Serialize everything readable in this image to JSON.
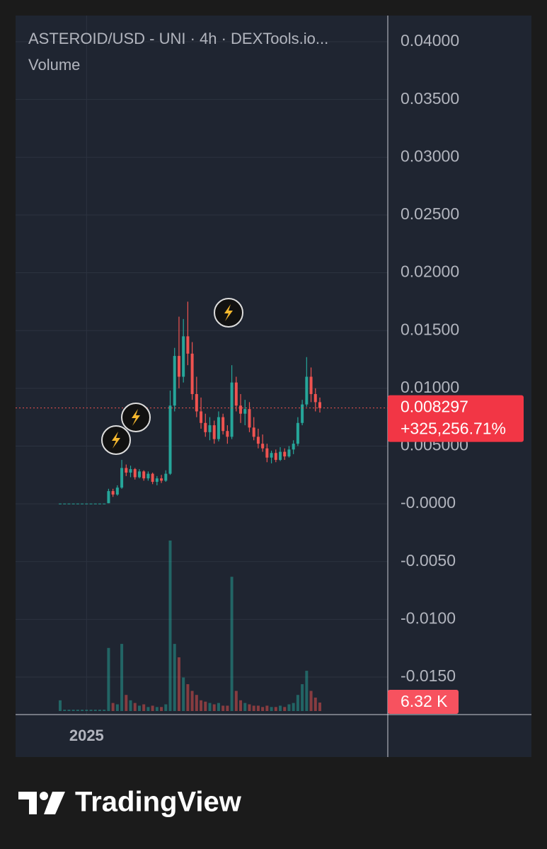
{
  "chart_data": {
    "type": "candlestick",
    "title": "ASTEROID/USD - UNI · 4h · DEXTools.io...",
    "subtitle": "Volume",
    "categories": [
      null,
      null,
      null,
      null,
      null,
      null,
      "2025",
      null,
      null,
      null,
      null,
      null,
      null,
      null,
      null,
      null,
      null,
      null,
      null,
      null,
      null,
      null,
      null,
      null,
      null,
      null,
      null,
      null,
      null,
      null,
      null,
      null,
      null,
      null,
      null,
      null,
      null,
      null,
      null,
      null,
      null,
      null,
      null,
      null,
      null,
      null,
      null,
      null,
      null,
      null,
      null,
      null,
      null,
      null,
      null,
      null,
      null,
      null,
      null,
      null
    ],
    "open": [
      2e-05,
      2e-05,
      2e-05,
      2e-05,
      2e-05,
      2e-05,
      2e-05,
      2e-05,
      2e-05,
      2e-05,
      2e-05,
      5e-05,
      0.0011,
      0.0008,
      0.0014,
      0.0031,
      0.0027,
      0.003,
      0.0023,
      0.0028,
      0.0022,
      0.0026,
      0.0019,
      0.0022,
      0.002,
      0.0026,
      0.0085,
      0.0128,
      0.011,
      0.0145,
      0.013,
      0.0095,
      0.008,
      0.007,
      0.0062,
      0.0068,
      0.0056,
      0.0075,
      0.0063,
      0.0058,
      0.0105,
      0.0085,
      0.0078,
      0.0082,
      0.0066,
      0.0058,
      0.0052,
      0.0048,
      0.004,
      0.0044,
      0.0038,
      0.0045,
      0.0041,
      0.0047,
      0.0052,
      0.007,
      0.0086,
      0.011,
      0.0095,
      0.0088
    ],
    "high": [
      2e-05,
      2e-05,
      2e-05,
      2e-05,
      2e-05,
      2e-05,
      2e-05,
      2e-05,
      2e-05,
      2e-05,
      2e-05,
      0.0013,
      0.0013,
      0.0016,
      0.0038,
      0.0034,
      0.0033,
      0.0031,
      0.003,
      0.0029,
      0.0028,
      0.0027,
      0.0024,
      0.0025,
      0.0029,
      0.0098,
      0.0135,
      0.0162,
      0.016,
      0.0175,
      0.014,
      0.011,
      0.0092,
      0.0078,
      0.0075,
      0.0072,
      0.008,
      0.0078,
      0.0068,
      0.012,
      0.011,
      0.0095,
      0.009,
      0.0088,
      0.0075,
      0.0065,
      0.006,
      0.0052,
      0.0046,
      0.0047,
      0.0049,
      0.0048,
      0.005,
      0.0055,
      0.0075,
      0.009,
      0.0127,
      0.0118,
      0.01,
      0.0092
    ],
    "low": [
      2e-05,
      2e-05,
      2e-05,
      2e-05,
      2e-05,
      2e-05,
      2e-05,
      2e-05,
      2e-05,
      2e-05,
      2e-05,
      5e-05,
      0.0006,
      0.0007,
      0.0013,
      0.0024,
      0.0023,
      0.0021,
      0.0022,
      0.002,
      0.002,
      0.0017,
      0.0016,
      0.0018,
      0.0019,
      0.0025,
      0.008,
      0.01,
      0.0105,
      0.012,
      0.009,
      0.0075,
      0.0065,
      0.0058,
      0.0055,
      0.0052,
      0.0054,
      0.006,
      0.0052,
      0.0056,
      0.008,
      0.007,
      0.0068,
      0.0062,
      0.0055,
      0.0048,
      0.0045,
      0.0036,
      0.0035,
      0.0036,
      0.0037,
      0.0038,
      0.004,
      0.0043,
      0.005,
      0.0068,
      0.0084,
      0.0088,
      0.008,
      0.0079
    ],
    "close": [
      2e-05,
      2e-05,
      2e-05,
      2e-05,
      2e-05,
      2e-05,
      2e-05,
      2e-05,
      2e-05,
      2e-05,
      2e-05,
      0.0011,
      0.0008,
      0.0014,
      0.0031,
      0.0027,
      0.003,
      0.0023,
      0.0028,
      0.0022,
      0.0026,
      0.0019,
      0.0022,
      0.002,
      0.0026,
      0.0085,
      0.0128,
      0.011,
      0.0145,
      0.013,
      0.0095,
      0.008,
      0.007,
      0.0062,
      0.0068,
      0.0056,
      0.0075,
      0.0063,
      0.0058,
      0.0105,
      0.0085,
      0.0078,
      0.0082,
      0.0066,
      0.0058,
      0.0052,
      0.0048,
      0.004,
      0.0044,
      0.0038,
      0.0045,
      0.0041,
      0.0047,
      0.0052,
      0.007,
      0.0086,
      0.011,
      0.0095,
      0.0088,
      0.008297
    ],
    "volume": [
      8000,
      1000,
      1000,
      1000,
      1000,
      1000,
      1000,
      1000,
      1000,
      1000,
      1000,
      47000,
      6000,
      5000,
      50000,
      12000,
      8000,
      6000,
      4000,
      5000,
      3000,
      4000,
      3000,
      3000,
      5000,
      127000,
      50000,
      40000,
      25000,
      20000,
      15000,
      12000,
      8000,
      7000,
      6000,
      5000,
      6000,
      4000,
      4000,
      100000,
      15000,
      8000,
      6000,
      5000,
      4000,
      4000,
      3000,
      4000,
      3000,
      3000,
      4000,
      3000,
      5000,
      6000,
      12000,
      20000,
      30000,
      15000,
      10000,
      6320
    ],
    "colors": {
      "up": "#26a69a",
      "down": "#ef5350"
    },
    "ylim": [
      -0.01825,
      0.04227
    ],
    "yticks": [
      {
        "value": 0.04,
        "label": "0.04000"
      },
      {
        "value": 0.035,
        "label": "0.03500"
      },
      {
        "value": 0.03,
        "label": "0.03000"
      },
      {
        "value": 0.025,
        "label": "0.02500"
      },
      {
        "value": 0.02,
        "label": "0.02000"
      },
      {
        "value": 0.015,
        "label": "0.01500"
      },
      {
        "value": 0.01,
        "label": "0.01000"
      },
      {
        "value": 0.005,
        "label": "0.005000"
      },
      {
        "value": 0,
        "label": "-0.0000"
      },
      {
        "value": -0.005,
        "label": "-0.0050"
      },
      {
        "value": -0.01,
        "label": "-0.0100"
      },
      {
        "value": -0.015,
        "label": "-0.0150"
      }
    ],
    "y2lim": [
      0,
      518000
    ],
    "grid": true,
    "last_price": 0.008297,
    "last_change": "+325,256.71%",
    "last_volume": {
      "value": 6320,
      "label": "6.32 K"
    }
  },
  "brand": "TradingView"
}
